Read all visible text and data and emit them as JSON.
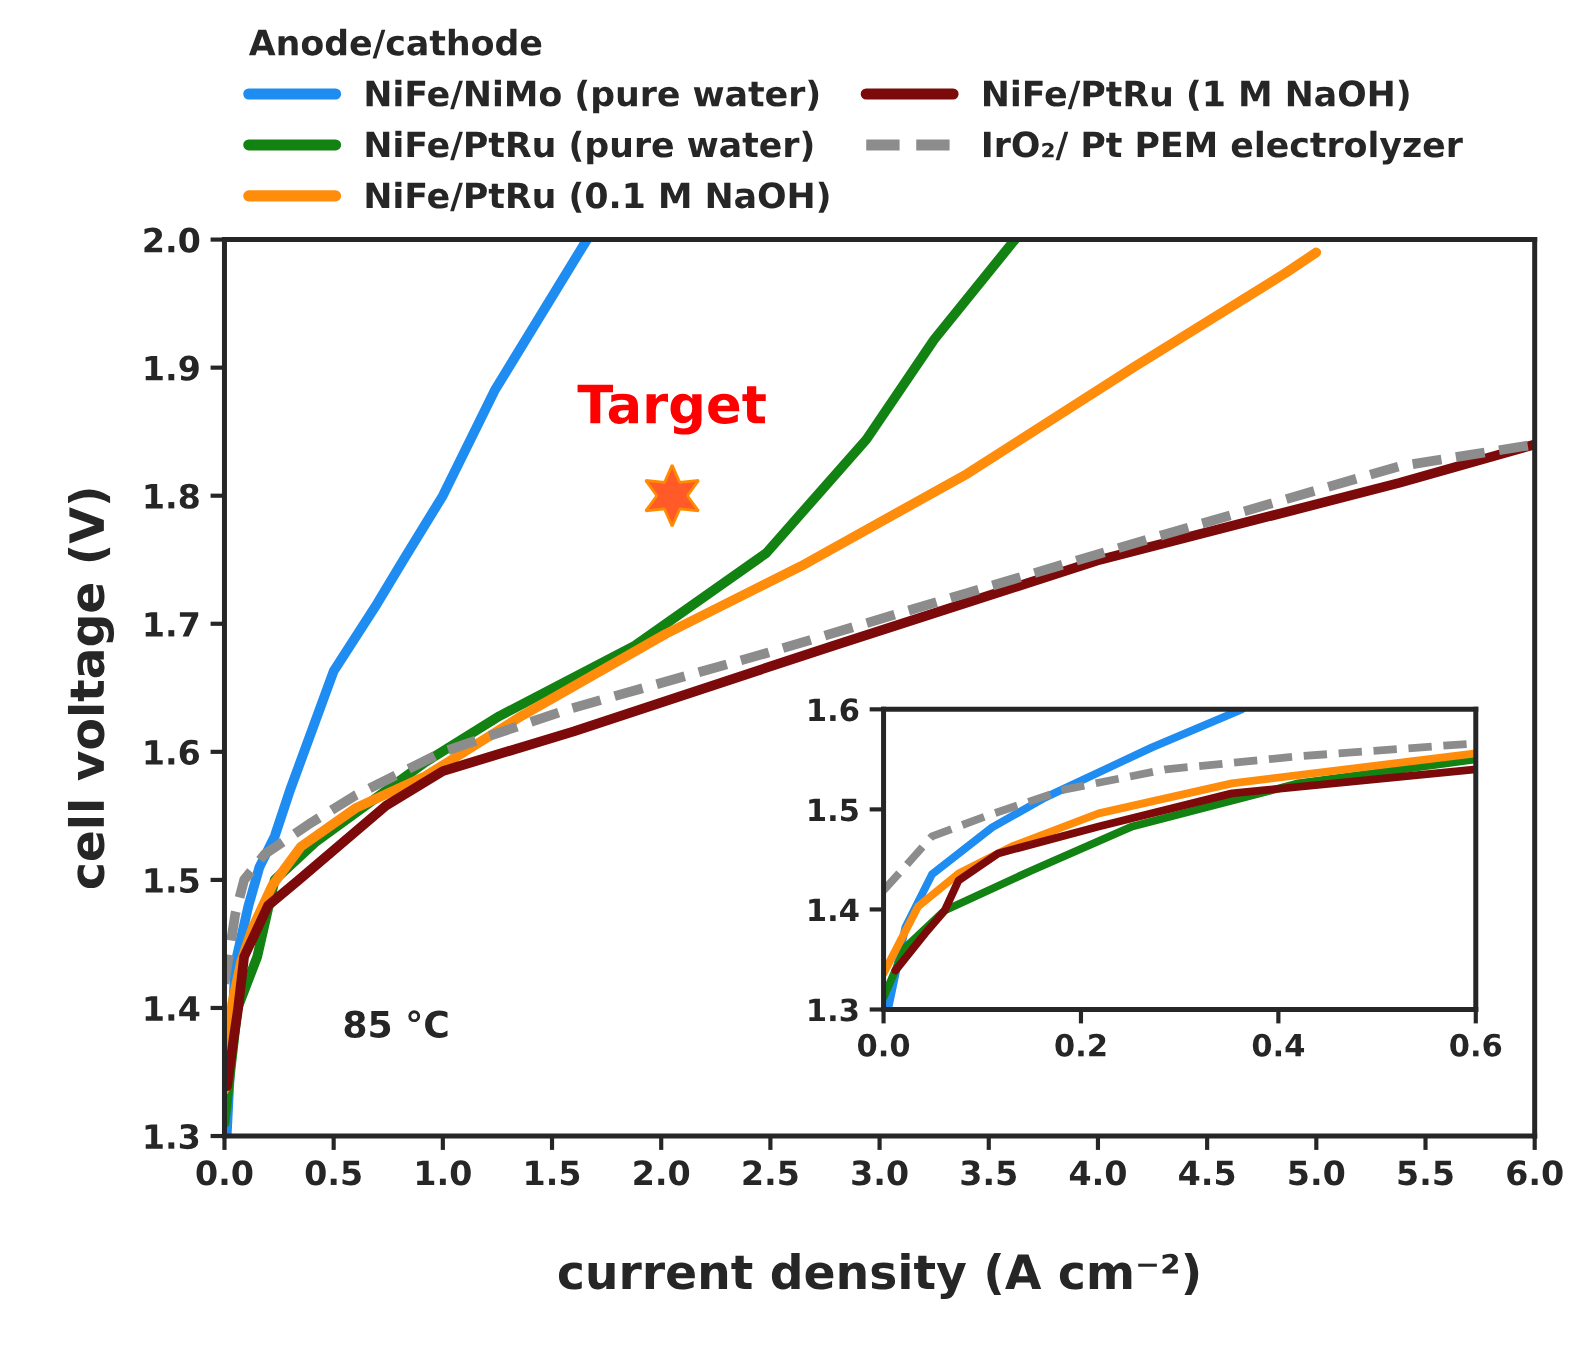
{
  "chart_data": [
    {
      "type": "line",
      "xlabel": "current density (A cm⁻²)",
      "ylabel": "cell voltage (V)",
      "legend_title": "Anode/cathode",
      "legend": "top",
      "line_style": "solid",
      "marker": "none",
      "grid": false,
      "xlim": [
        0,
        6
      ],
      "xticks": [
        {
          "value": 0,
          "label": "0.0"
        },
        {
          "value": 0.5,
          "label": "0.5"
        },
        {
          "value": 1,
          "label": "1.0"
        },
        {
          "value": 1.5,
          "label": "1.5"
        },
        {
          "value": 2,
          "label": "2.0"
        },
        {
          "value": 2.5,
          "label": "2.5"
        },
        {
          "value": 3,
          "label": "3.0"
        },
        {
          "value": 3.5,
          "label": "3.5"
        },
        {
          "value": 4,
          "label": "4.0"
        },
        {
          "value": 4.5,
          "label": "4.5"
        },
        {
          "value": 5,
          "label": "5.0"
        },
        {
          "value": 5.5,
          "label": "5.5"
        },
        {
          "value": 6,
          "label": "6.0"
        }
      ],
      "ylim": [
        1.3,
        2.0
      ],
      "yticks": [
        1.3,
        1.4,
        1.5,
        1.6,
        1.7,
        1.8,
        1.9,
        {
          "value": 2.0,
          "label": "2.0"
        }
      ],
      "annotations": [
        {
          "text": "Target",
          "x": 2.05,
          "y": 1.8
        },
        "85 °C"
      ],
      "series": [
        {
          "name": "NiFe/NiMo (pure water)",
          "color": "#1e8cf0",
          "x": [
            0.01,
            0.05,
            0.11,
            0.16,
            0.23,
            0.3,
            0.5,
            0.7,
            0.82,
            1.0,
            1.24,
            1.66
          ],
          "values": [
            1.3,
            1.435,
            1.48,
            1.51,
            1.534,
            1.57,
            1.663,
            1.716,
            1.75,
            1.8,
            1.883,
            2.0
          ]
        },
        {
          "name": "NiFe/PtRu (pure water)",
          "color": "#128212",
          "x": [
            0,
            0.06,
            0.15,
            0.23,
            0.42,
            0.92,
            1.26,
            1.88,
            2.48,
            2.94,
            3.25,
            3.62
          ],
          "values": [
            1.31,
            1.4,
            1.44,
            1.5,
            1.53,
            1.592,
            1.628,
            1.683,
            1.755,
            1.844,
            1.922,
            2.0
          ]
        },
        {
          "name": "NiFe/PtRu (0.1 M NaOH)",
          "color": "#ff8c0a",
          "x": [
            0,
            0.035,
            0.076,
            0.13,
            0.22,
            0.35,
            0.6,
            0.92,
            1.36,
            2.02,
            2.64,
            3.4,
            4.17,
            4.86,
            5.0
          ],
          "values": [
            1.336,
            1.403,
            1.436,
            1.463,
            1.496,
            1.526,
            1.556,
            1.581,
            1.628,
            1.692,
            1.745,
            1.817,
            1.901,
            1.974,
            1.99
          ]
        },
        {
          "name": "NiFe/PtRu (1 M NaOH)",
          "color": "#7d0a0a",
          "x": [
            0.012,
            0.042,
            0.062,
            0.09,
            0.2,
            0.34,
            0.74,
            1.0,
            1.6,
            2.79,
            4.01,
            5.38,
            6.0
          ],
          "values": [
            1.339,
            1.376,
            1.399,
            1.44,
            1.48,
            1.5,
            1.558,
            1.585,
            1.616,
            1.683,
            1.75,
            1.81,
            1.84
          ]
        },
        {
          "name": "IrO₂/ Pt PEM electrolyzer",
          "color": "#8c8c8c",
          "line_style": "dashed",
          "x": [
            0,
            0.022,
            0.049,
            0.09,
            0.184,
            0.4,
            0.6,
            1.0,
            1.57,
            2.48,
            3.4,
            4.31,
            5.38,
            6.0
          ],
          "values": [
            1.419,
            1.443,
            1.473,
            1.5,
            1.52,
            1.545,
            1.566,
            1.6,
            1.633,
            1.677,
            1.724,
            1.77,
            1.823,
            1.84
          ]
        }
      ]
    },
    {
      "type": "line",
      "line_style": "solid",
      "marker": "none",
      "grid": false,
      "xlim": [
        0,
        0.6
      ],
      "xticks": [
        {
          "value": 0,
          "label": "0.0"
        },
        0.2,
        0.4,
        0.6
      ],
      "ylim": [
        1.3,
        1.6
      ],
      "yticks": [
        1.3,
        1.4,
        1.5,
        1.6
      ],
      "series": [
        {
          "color": "#1e8cf0",
          "x": [
            0.005,
            0.022,
            0.049,
            0.11,
            0.164,
            0.272,
            0.363
          ],
          "values": [
            1.302,
            1.382,
            1.435,
            1.482,
            1.512,
            1.562,
            1.6
          ]
        },
        {
          "color": "#128212",
          "x": [
            0,
            0.022,
            0.062,
            0.15,
            0.252,
            0.42,
            0.6
          ],
          "values": [
            1.312,
            1.362,
            1.399,
            1.439,
            1.483,
            1.526,
            1.55
          ]
        },
        {
          "color": "#ff8c0a",
          "x": [
            0,
            0.035,
            0.076,
            0.13,
            0.218,
            0.353,
            0.6
          ],
          "values": [
            1.336,
            1.403,
            1.436,
            1.463,
            1.496,
            1.526,
            1.556
          ]
        },
        {
          "color": "#7d0a0a",
          "x": [
            0.012,
            0.042,
            0.062,
            0.076,
            0.116,
            0.218,
            0.353,
            0.6
          ],
          "values": [
            1.339,
            1.376,
            1.399,
            1.429,
            1.456,
            1.483,
            1.516,
            1.54
          ]
        },
        {
          "color": "#8c8c8c",
          "line_style": "dashed",
          "x": [
            0,
            0.022,
            0.049,
            0.103,
            0.184,
            0.286,
            0.42,
            0.6
          ],
          "values": [
            1.419,
            1.443,
            1.473,
            1.493,
            1.52,
            1.54,
            1.553,
            1.566
          ]
        }
      ]
    }
  ]
}
